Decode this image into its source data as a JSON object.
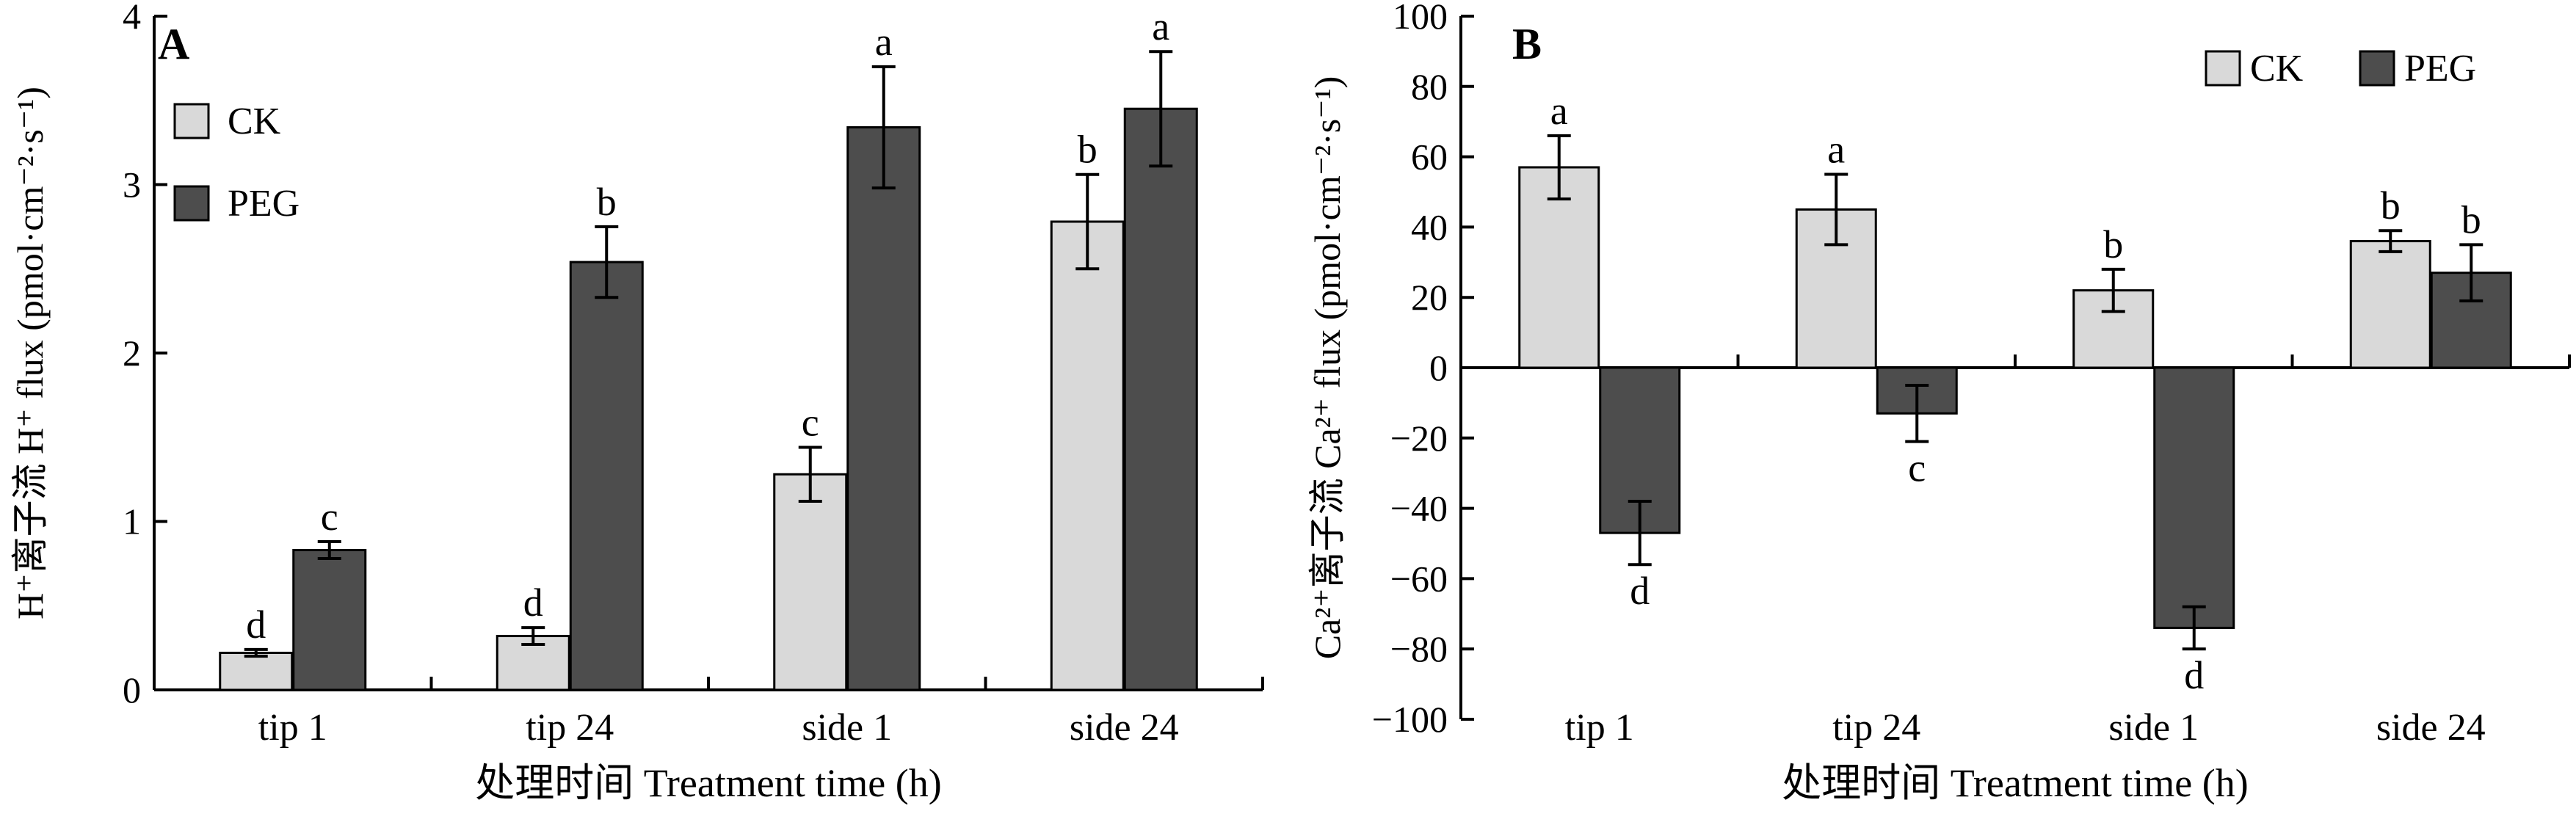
{
  "colors": {
    "CK": "#d9d9d9",
    "PEG": "#4d4d4d",
    "axis": "#000000"
  },
  "chart_data": [
    {
      "type": "bar",
      "panel": "A",
      "categories": [
        "tip 1",
        "tip 24",
        "side 1",
        "side 24"
      ],
      "series": [
        {
          "name": "CK",
          "values": [
            0.22,
            0.32,
            1.28,
            2.78
          ],
          "errors": [
            0.02,
            0.05,
            0.16,
            0.28
          ],
          "letters": [
            "d",
            "d",
            "c",
            "b"
          ]
        },
        {
          "name": "PEG",
          "values": [
            0.83,
            2.54,
            3.34,
            3.45
          ],
          "errors": [
            0.05,
            0.21,
            0.36,
            0.34
          ],
          "letters": [
            "c",
            "b",
            "a",
            "a"
          ]
        }
      ],
      "ylabel": "H⁺离子流 H⁺ flux (pmol·cm⁻²·s⁻¹)",
      "xlabel": "处理时间 Treatment time (h)",
      "ylim": [
        0,
        4
      ],
      "yticks": [
        0,
        1,
        2,
        3,
        4
      ],
      "legend": "top-left",
      "grid": false
    },
    {
      "type": "bar",
      "panel": "B",
      "categories": [
        "tip 1",
        "tip 24",
        "side 1",
        "side 24"
      ],
      "series": [
        {
          "name": "CK",
          "values": [
            57,
            45,
            22,
            36
          ],
          "errors": [
            9,
            10,
            6,
            3
          ],
          "letters": [
            "a",
            "a",
            "b",
            "b"
          ]
        },
        {
          "name": "PEG",
          "values": [
            -47,
            -13,
            -74,
            27
          ],
          "errors": [
            9,
            8,
            6,
            8
          ],
          "letters": [
            "d",
            "c",
            "d",
            "b"
          ]
        }
      ],
      "ylabel": "Ca²⁺离子流 Ca²⁺ flux (pmol·cm⁻²·s⁻¹)",
      "xlabel": "处理时间 Treatment time (h)",
      "ylim": [
        -100,
        100
      ],
      "yticks": [
        -100,
        -80,
        -60,
        -40,
        -20,
        0,
        20,
        40,
        60,
        80,
        100
      ],
      "ytick_labels": [
        "−100",
        "−80",
        "−60",
        "−40",
        "−20",
        "0",
        "20",
        "40",
        "60",
        "80",
        "100"
      ],
      "legend": "top-right",
      "grid": false
    }
  ]
}
